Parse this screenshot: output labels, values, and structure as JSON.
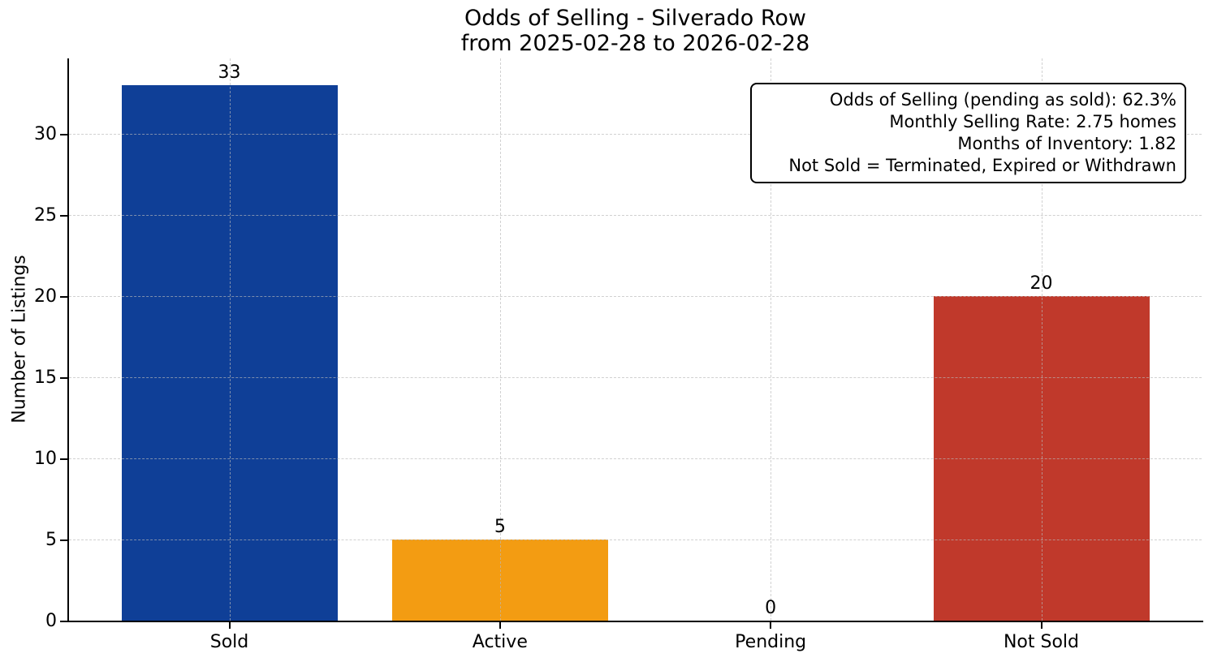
{
  "chart_data": {
    "type": "bar",
    "title": "Odds of Selling - Silverado Row\nfrom 2025-02-28 to 2026-02-28",
    "title_lines": [
      "Odds of Selling - Silverado Row",
      "from 2025-02-28 to 2026-02-28"
    ],
    "categories": [
      "Sold",
      "Active",
      "Pending",
      "Not Sold"
    ],
    "values": [
      33,
      5,
      0,
      20
    ],
    "bar_labels": [
      "33",
      "5",
      "0",
      "20"
    ],
    "bar_colors": [
      "#0f3f97",
      "#f39c12",
      null,
      "#c0392b"
    ],
    "xlabel": "",
    "ylabel": "Number of Listings",
    "yticks": [
      0,
      5,
      10,
      15,
      20,
      25,
      30
    ],
    "ylim": [
      0,
      34.65
    ],
    "grid": {
      "visible": true,
      "style": "dashed",
      "color": "#bdbdbd",
      "vertical": true,
      "horizontal": true
    },
    "axis_color": "#000000",
    "legend": null,
    "annotation": {
      "position": "top-right",
      "border_color": "#000000",
      "background": "#ffffff",
      "lines": [
        "Odds of Selling (pending as sold): 62.3%",
        "Monthly Selling Rate: 2.75 homes",
        "Months of Inventory: 1.82",
        "Not Sold = Terminated, Expired or Withdrawn"
      ]
    }
  }
}
